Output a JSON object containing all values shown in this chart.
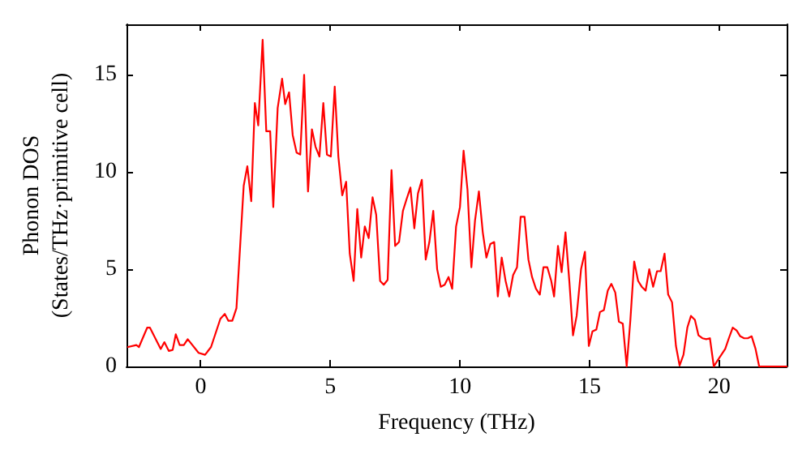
{
  "chart_data": {
    "type": "line",
    "xlabel": "Frequency (THz)",
    "ylabel": "Phonon DOS\n(States/THz·primitive cell)",
    "xlim": [
      -2.86,
      22.6
    ],
    "ylim": [
      0,
      17.6
    ],
    "xticks": [
      0,
      5,
      10,
      15,
      20
    ],
    "yticks": [
      0,
      5,
      10,
      15
    ],
    "grid": false,
    "marker": "none",
    "line_style": "solid",
    "series": [
      {
        "color": "#ff0000",
        "x": [
          -2.8,
          -2.48,
          -2.38,
          -2.06,
          -1.96,
          -1.54,
          -1.4,
          -1.23,
          -1.08,
          -0.96,
          -0.81,
          -0.65,
          -0.5,
          -0.08,
          0.17,
          0.4,
          0.76,
          0.93,
          1.07,
          1.22,
          1.38,
          1.66,
          1.8,
          1.95,
          2.09,
          2.22,
          2.39,
          2.53,
          2.68,
          2.8,
          2.97,
          3.14,
          3.26,
          3.41,
          3.55,
          3.7,
          3.84,
          3.99,
          4.14,
          4.29,
          4.43,
          4.58,
          4.73,
          4.87,
          5.02,
          5.17,
          5.31,
          5.46,
          5.61,
          5.75,
          5.9,
          6.04,
          6.19,
          6.33,
          6.48,
          6.63,
          6.77,
          6.92,
          7.06,
          7.21,
          7.36,
          7.5,
          7.65,
          7.8,
          7.94,
          8.09,
          8.24,
          8.38,
          8.53,
          8.68,
          8.82,
          8.97,
          9.12,
          9.26,
          9.41,
          9.56,
          9.7,
          9.85,
          10.0,
          10.14,
          10.29,
          10.44,
          10.58,
          10.73,
          10.88,
          11.02,
          11.17,
          11.32,
          11.46,
          11.61,
          11.76,
          11.9,
          12.05,
          12.2,
          12.34,
          12.49,
          12.64,
          12.78,
          12.93,
          13.08,
          13.22,
          13.37,
          13.52,
          13.63,
          13.78,
          13.92,
          14.07,
          14.22,
          14.36,
          14.5,
          14.67,
          14.82,
          14.97,
          15.11,
          15.26,
          15.4,
          15.55,
          15.7,
          15.84,
          15.99,
          16.13,
          16.28,
          16.43,
          16.57,
          16.72,
          16.87,
          17.01,
          17.16,
          17.3,
          17.45,
          17.6,
          17.74,
          17.89,
          18.03,
          18.18,
          18.33,
          18.47,
          18.62,
          18.77,
          18.91,
          19.06,
          19.2,
          19.35,
          19.5,
          19.64,
          19.79,
          19.93,
          20.08,
          20.23,
          20.37,
          20.52,
          20.67,
          20.81,
          20.96,
          21.1,
          21.25,
          21.4,
          21.54,
          22.6
        ],
        "values": [
          1.0,
          1.1,
          1.0,
          2.0,
          2.0,
          0.9,
          1.25,
          0.8,
          0.85,
          1.65,
          1.1,
          1.1,
          1.4,
          0.7,
          0.6,
          1.0,
          2.45,
          2.7,
          2.35,
          2.35,
          3.0,
          9.3,
          10.3,
          8.5,
          13.55,
          12.4,
          16.8,
          12.1,
          12.1,
          8.2,
          13.3,
          14.8,
          13.5,
          14.1,
          11.9,
          11.0,
          10.9,
          15.0,
          9.0,
          12.2,
          11.3,
          10.8,
          13.55,
          10.9,
          10.8,
          14.4,
          10.8,
          8.8,
          9.5,
          5.8,
          4.4,
          8.1,
          5.6,
          7.2,
          6.6,
          8.7,
          7.8,
          4.4,
          4.2,
          4.45,
          10.1,
          6.2,
          6.4,
          8.0,
          8.6,
          9.2,
          7.1,
          8.9,
          9.6,
          5.5,
          6.4,
          8.0,
          5.0,
          4.1,
          4.2,
          4.6,
          4.0,
          7.2,
          8.2,
          11.1,
          9.1,
          5.1,
          7.5,
          9.0,
          6.9,
          5.6,
          6.3,
          6.4,
          3.6,
          5.6,
          4.4,
          3.6,
          4.7,
          5.1,
          7.7,
          7.7,
          5.5,
          4.6,
          4.0,
          3.7,
          5.1,
          5.1,
          4.4,
          3.6,
          6.2,
          4.85,
          6.9,
          4.35,
          1.6,
          2.6,
          5.0,
          5.9,
          1.05,
          1.8,
          1.9,
          2.8,
          2.9,
          3.9,
          4.25,
          3.8,
          2.3,
          2.2,
          0,
          2.35,
          5.4,
          4.4,
          4.1,
          3.9,
          5.0,
          4.1,
          4.9,
          4.9,
          5.8,
          3.7,
          3.3,
          1.05,
          0.05,
          0.6,
          2.0,
          2.6,
          2.4,
          1.6,
          1.45,
          1.4,
          1.45,
          0,
          0.3,
          0.6,
          0.9,
          1.45,
          2.0,
          1.85,
          1.55,
          1.45,
          1.45,
          1.55,
          0.9,
          0,
          0
        ]
      }
    ]
  }
}
